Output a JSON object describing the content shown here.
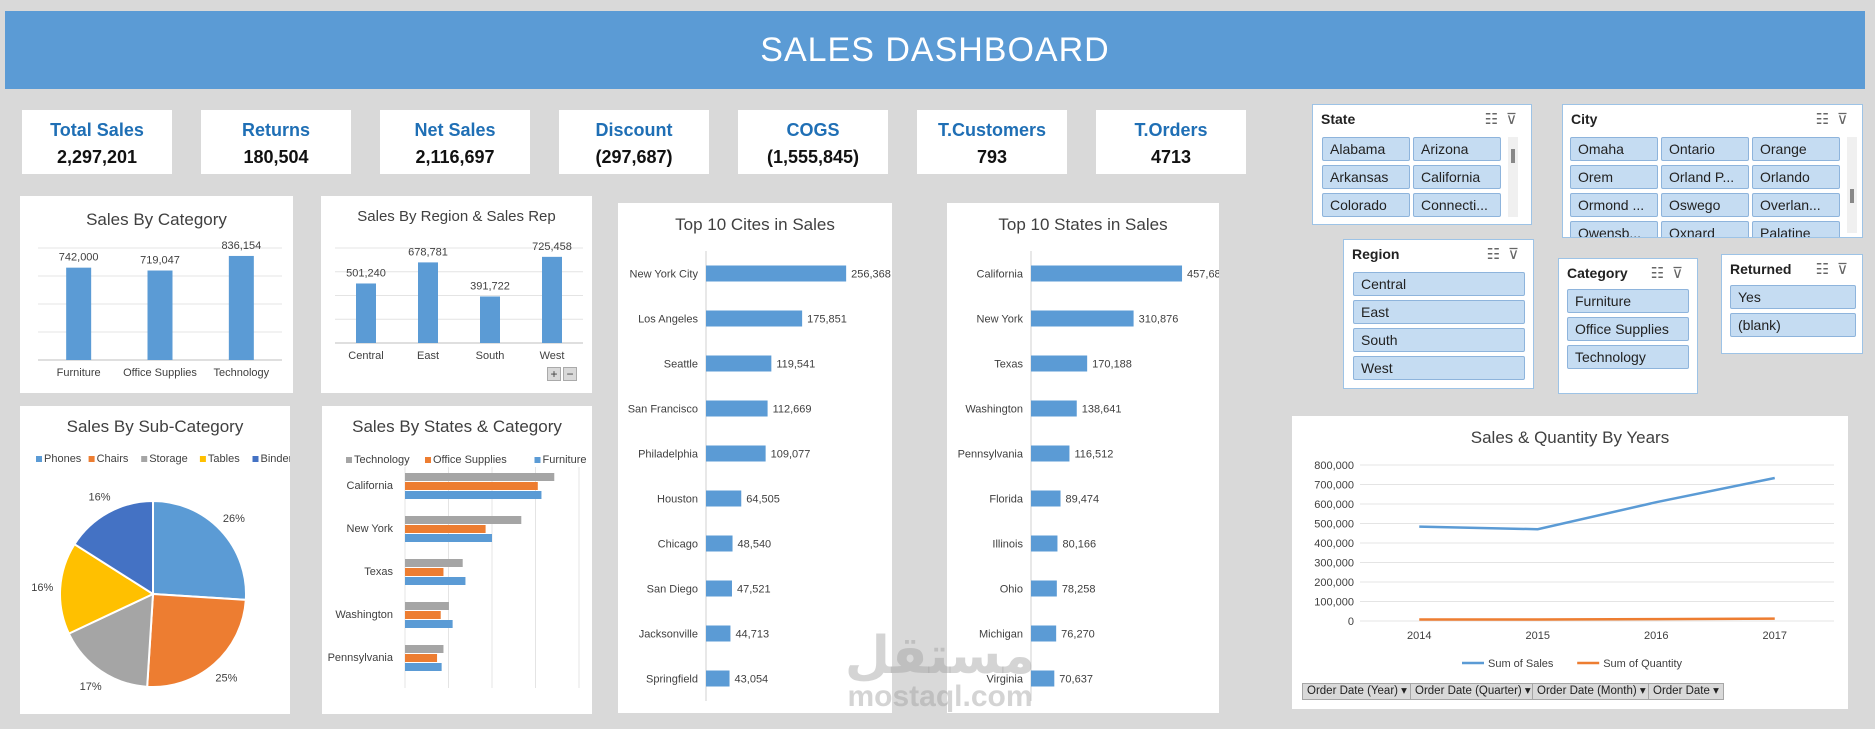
{
  "header": {
    "title": "SALES DASHBOARD"
  },
  "kpis": [
    {
      "label": "Total Sales",
      "value": "2,297,201"
    },
    {
      "label": "Returns",
      "value": "180,504"
    },
    {
      "label": "Net Sales",
      "value": "2,116,697"
    },
    {
      "label": "Discount",
      "value": "(297,687)"
    },
    {
      "label": "COGS",
      "value": "(1,555,845)"
    },
    {
      "label": "T.Customers",
      "value": "793"
    },
    {
      "label": "T.Orders",
      "value": "4713"
    }
  ],
  "colors": {
    "header": "#5b9bd5",
    "bar": "#5b9bd5",
    "orange": "#ed7d31",
    "gray": "#a5a5a5",
    "yellow": "#ffc000",
    "darkblue": "#4472c4",
    "kpi_label": "#1f6fb5"
  },
  "slicers": {
    "state": {
      "title": "State",
      "items": [
        "Alabama",
        "Arizona",
        "Arkansas",
        "California",
        "Colorado",
        "Connecti..."
      ]
    },
    "city": {
      "title": "City",
      "items": [
        "Omaha",
        "Ontario",
        "Orange",
        "Orem",
        "Orland P...",
        "Orlando",
        "Ormond ...",
        "Oswego",
        "Overlan...",
        "Owensb...",
        "Oxnard",
        "Palatine"
      ]
    },
    "region": {
      "title": "Region",
      "items": [
        "Central",
        "East",
        "South",
        "West"
      ]
    },
    "category": {
      "title": "Category",
      "items": [
        "Furniture",
        "Office Supplies",
        "Technology"
      ]
    },
    "returned": {
      "title": "Returned",
      "items": [
        "Yes",
        "(blank)"
      ]
    }
  },
  "slicer_icons": {
    "multi_select": "multi-select-icon",
    "clear_filter": "clear-filter-icon"
  },
  "pivot_filters": [
    "Order Date (Year)",
    "Order Date (Quarter)",
    "Order Date (Month)",
    "Order Date"
  ],
  "watermark": {
    "arabic": "مستقل",
    "latin": "mostaql.com"
  },
  "chart_data": [
    {
      "id": "category",
      "type": "bar",
      "title": "Sales By Category",
      "categories": [
        "Furniture",
        "Office Supplies",
        "Technology"
      ],
      "values": [
        742000,
        719047,
        836154
      ],
      "labels": [
        "742,000",
        "719,047",
        "836,154"
      ],
      "ylim": [
        0,
        900000
      ],
      "grid": true
    },
    {
      "id": "region",
      "type": "bar",
      "title": "Sales By Region & Sales Rep",
      "categories": [
        "Central",
        "East",
        "South",
        "West"
      ],
      "values": [
        501240,
        678781,
        391722,
        725458
      ],
      "labels": [
        "501,240",
        "678,781",
        "391,722",
        "725,458"
      ],
      "ylim": [
        0,
        800000
      ],
      "grid": true
    },
    {
      "id": "cities",
      "type": "bar",
      "orientation": "horizontal",
      "title": "Top 10 Cites in Sales",
      "categories": [
        "New York City",
        "Los Angeles",
        "Seattle",
        "San Francisco",
        "Philadelphia",
        "Houston",
        "Chicago",
        "San Diego",
        "Jacksonville",
        "Springfield"
      ],
      "values": [
        256368,
        175851,
        119541,
        112669,
        109077,
        64505,
        48540,
        47521,
        44713,
        43054
      ],
      "labels": [
        "256,368",
        "175,851",
        "119,541",
        "112,669",
        "109,077",
        "64,505",
        "48,540",
        "47,521",
        "44,713",
        "43,054"
      ],
      "xlim": [
        0,
        300000
      ]
    },
    {
      "id": "states",
      "type": "bar",
      "orientation": "horizontal",
      "title": "Top 10 States in Sales",
      "categories": [
        "California",
        "New York",
        "Texas",
        "Washington",
        "Pennsylvania",
        "Florida",
        "Illinois",
        "Ohio",
        "Michigan",
        "Virginia"
      ],
      "values": [
        457688,
        310876,
        170188,
        138641,
        116512,
        89474,
        80166,
        78258,
        76270,
        70637
      ],
      "labels": [
        "457,688",
        "310,876",
        "170,188",
        "138,641",
        "116,512",
        "89,474",
        "80,166",
        "78,258",
        "76,270",
        "70,637"
      ],
      "xlim": [
        0,
        500000
      ]
    },
    {
      "id": "subcategory",
      "type": "pie",
      "title": "Sales By Sub-Category",
      "legend": [
        "Phones",
        "Chairs",
        "Storage",
        "Tables",
        "Binders"
      ],
      "slices": [
        {
          "name": "Phones",
          "value": 26,
          "label": "26%",
          "color": "#5b9bd5"
        },
        {
          "name": "Chairs",
          "value": 25,
          "label": "25%",
          "color": "#ed7d31"
        },
        {
          "name": "Storage",
          "value": 17,
          "label": "17%",
          "color": "#a5a5a5"
        },
        {
          "name": "Tables",
          "value": 16,
          "label": "16%",
          "color": "#ffc000"
        },
        {
          "name": "Binders",
          "value": 16,
          "label": "16%",
          "color": "#4472c4"
        }
      ]
    },
    {
      "id": "states_category",
      "type": "bar",
      "orientation": "horizontal",
      "title": "Sales By States & Category",
      "categories": [
        "California",
        "New York",
        "Texas",
        "Washington",
        "Pennsylvania"
      ],
      "series": [
        {
          "name": "Technology",
          "color": "#a5a5a5",
          "values": [
            163000,
            127000,
            63000,
            48000,
            42000
          ]
        },
        {
          "name": "Office Supplies",
          "color": "#ed7d31",
          "values": [
            145000,
            88000,
            42000,
            39000,
            35000
          ]
        },
        {
          "name": "Furniture",
          "color": "#5b9bd5",
          "values": [
            149000,
            95000,
            66000,
            52000,
            40000
          ]
        }
      ],
      "xlim": [
        0,
        190000
      ],
      "grid": true
    },
    {
      "id": "years",
      "type": "line",
      "title": "Sales & Quantity By Years",
      "x": [
        "2014",
        "2015",
        "2016",
        "2017"
      ],
      "series": [
        {
          "name": "Sum of Sales",
          "color": "#5b9bd5",
          "values": [
            484247,
            470533,
            609206,
            733215
          ]
        },
        {
          "name": "Sum of Quantity",
          "color": "#ed7d31",
          "values": [
            7581,
            7979,
            9837,
            12476
          ]
        }
      ],
      "yticks": [
        "0",
        "100,000",
        "200,000",
        "300,000",
        "400,000",
        "500,000",
        "600,000",
        "700,000",
        "800,000"
      ],
      "ylim": [
        0,
        800000
      ],
      "grid": true,
      "legend_position": "bottom"
    }
  ]
}
